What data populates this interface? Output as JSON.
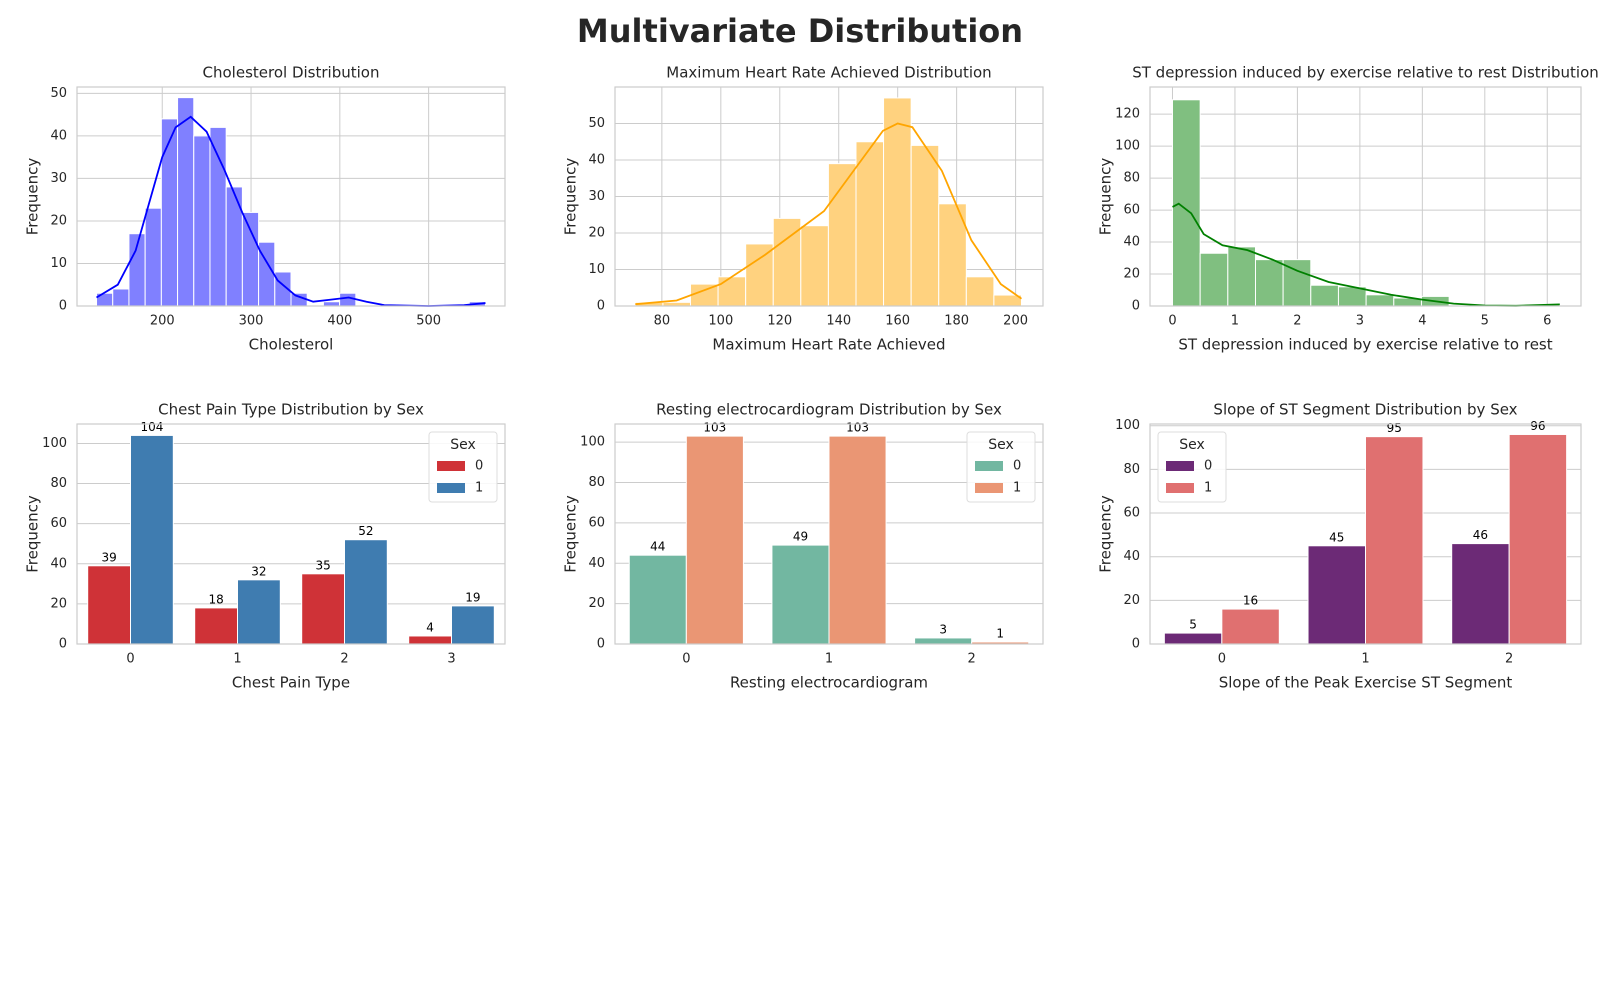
{
  "title": "Multivariate Distribution",
  "chart_data": [
    {
      "type": "histogram",
      "title": "Cholesterol Distribution",
      "x_label": "Cholesterol",
      "y_label": "Frequency",
      "bins": [
        126,
        144.25,
        162.5,
        180.75,
        199,
        217.25,
        235.5,
        253.75,
        272,
        290.25,
        308.5,
        326.75,
        345,
        363.25,
        381.5,
        399.75,
        418,
        436.25,
        454.5,
        472.75,
        491,
        509.25,
        527.5,
        545.75,
        564
      ],
      "counts": [
        3,
        4,
        17,
        23,
        44,
        49,
        40,
        42,
        28,
        22,
        15,
        8,
        3,
        0,
        1,
        3,
        0,
        0,
        0,
        0,
        0,
        0,
        0,
        1
      ],
      "color": "#8080ff",
      "kde": {
        "x": [
          126,
          150,
          170,
          185,
          200,
          215,
          232,
          250,
          270,
          290,
          310,
          330,
          350,
          370,
          390,
          410,
          430,
          450,
          500,
          540,
          564
        ],
        "y": [
          2,
          5,
          13,
          24,
          35,
          42,
          44.5,
          41,
          32,
          22,
          13,
          6,
          2.5,
          1,
          1.5,
          2,
          1,
          0.2,
          0,
          0.2,
          0.7
        ],
        "color": "#0000ff"
      },
      "xlim": [
        104,
        586
      ],
      "xticks": [
        200,
        300,
        400,
        500
      ],
      "ylim": [
        0,
        51.5
      ],
      "yticks": [
        0,
        10,
        20,
        30,
        40,
        50
      ],
      "grid": "both"
    },
    {
      "type": "histogram",
      "title": "Maximum Heart Rate Achieved Distribution",
      "x_label": "Maximum Heart Rate Achieved",
      "y_label": "Frequency",
      "bins": [
        71,
        80.36,
        89.71,
        99.07,
        108.43,
        117.79,
        127.14,
        136.5,
        145.86,
        155.21,
        164.57,
        173.93,
        183.29,
        192.64,
        202
      ],
      "counts": [
        1,
        1,
        6,
        8,
        17,
        24,
        22,
        39,
        45,
        57,
        44,
        28,
        8,
        3
      ],
      "color": "#ffd27f",
      "kde": {
        "x": [
          71,
          85,
          100,
          115,
          125,
          135,
          145,
          155,
          160,
          165,
          175,
          185,
          195,
          202
        ],
        "y": [
          0.5,
          1.5,
          6,
          14,
          20,
          26,
          37,
          48,
          50,
          49,
          37,
          18,
          6,
          2
        ],
        "color": "#ffa500"
      },
      "xlim": [
        64.1,
        209.3
      ],
      "xticks": [
        80,
        100,
        120,
        140,
        160,
        180,
        200
      ],
      "ylim": [
        0,
        60
      ],
      "yticks": [
        0,
        10,
        20,
        30,
        40,
        50
      ],
      "grid": "both"
    },
    {
      "type": "histogram",
      "title": "ST depression induced by exercise relative to rest Distribution",
      "x_label": "ST depression induced by exercise relative to rest",
      "y_label": "Frequency",
      "bins": [
        0,
        0.443,
        0.886,
        1.329,
        1.771,
        2.214,
        2.657,
        3.1,
        3.543,
        3.986,
        4.429,
        4.871,
        5.314,
        5.757,
        6.2
      ],
      "counts": [
        129,
        33,
        37,
        29,
        29,
        13,
        12,
        7,
        5,
        6,
        0,
        0,
        0,
        1
      ],
      "color": "#80bf80",
      "kde": {
        "x": [
          0,
          0.1,
          0.3,
          0.5,
          0.8,
          1.2,
          1.6,
          2,
          2.5,
          3,
          3.5,
          4,
          4.5,
          5,
          5.5,
          6.2
        ],
        "y": [
          62,
          64,
          58,
          45,
          38,
          35,
          29,
          22,
          15,
          11,
          7,
          4,
          1.5,
          0.3,
          0.1,
          1
        ],
        "color": "#008000"
      },
      "xlim": [
        -0.36,
        6.54
      ],
      "xticks": [
        0,
        1,
        2,
        3,
        4,
        5,
        6
      ],
      "ylim": [
        0,
        137
      ],
      "yticks": [
        0,
        20,
        40,
        60,
        80,
        100,
        120
      ],
      "grid": "both"
    },
    {
      "type": "bar",
      "title": "Chest Pain Type Distribution by Sex",
      "x_label": "Chest Pain Type",
      "y_label": "Frequency",
      "categories": [
        "0",
        "1",
        "2",
        "3"
      ],
      "legend_title": "Sex",
      "legend": "upper right",
      "series": [
        {
          "name": "0",
          "color": "#cf3237",
          "values": [
            39,
            18,
            35,
            4
          ]
        },
        {
          "name": "1",
          "color": "#3f7cb0",
          "values": [
            104,
            32,
            52,
            19
          ]
        }
      ],
      "ylim": [
        0,
        109.7
      ],
      "yticks": [
        0,
        20,
        40,
        60,
        80,
        100
      ],
      "grid": "y"
    },
    {
      "type": "bar",
      "title": "Resting electrocardiogram Distribution by Sex",
      "x_label": "Resting electrocardiogram",
      "y_label": "Frequency",
      "categories": [
        "0",
        "1",
        "2"
      ],
      "legend_title": "Sex",
      "legend": "upper right",
      "series": [
        {
          "name": "0",
          "color": "#72b7a1",
          "values": [
            44,
            49,
            3
          ]
        },
        {
          "name": "1",
          "color": "#ea9674",
          "values": [
            103,
            103,
            1
          ]
        }
      ],
      "ylim": [
        0,
        109
      ],
      "yticks": [
        0,
        20,
        40,
        60,
        80,
        100
      ],
      "grid": "y"
    },
    {
      "type": "bar",
      "title": "Slope of ST Segment Distribution by Sex",
      "x_label": "Slope of the Peak Exercise ST Segment",
      "y_label": "Frequency",
      "categories": [
        "0",
        "1",
        "2"
      ],
      "legend_title": "Sex",
      "legend": "upper left",
      "series": [
        {
          "name": "0",
          "color": "#6c2a76",
          "values": [
            5,
            45,
            46
          ]
        },
        {
          "name": "1",
          "color": "#e07070",
          "values": [
            16,
            95,
            96
          ]
        }
      ],
      "ylim": [
        0,
        100.8
      ],
      "yticks": [
        0,
        20,
        40,
        60,
        80,
        100
      ],
      "grid": "y"
    }
  ]
}
